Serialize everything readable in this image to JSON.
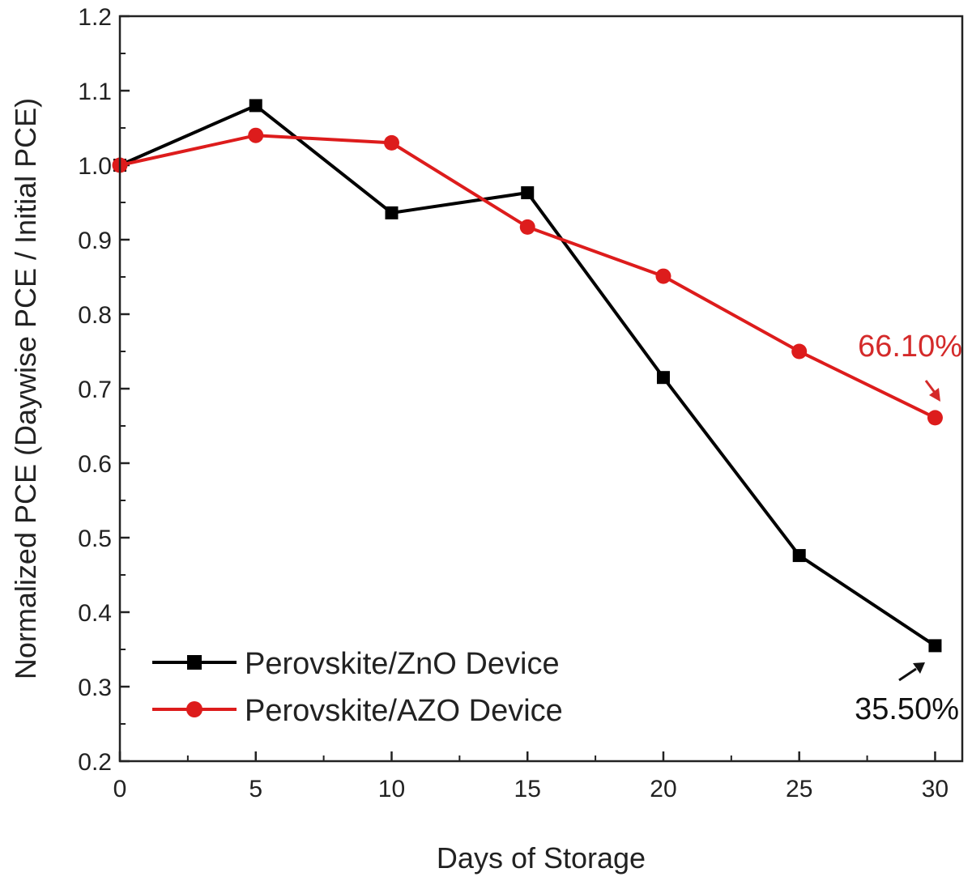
{
  "chart_data": {
    "type": "line",
    "title": "",
    "xlabel": "Days of Storage",
    "ylabel": "Normalized PCE (Daywise PCE / Initial PCE)",
    "x": [
      0,
      5,
      10,
      15,
      20,
      25,
      30
    ],
    "xlim": [
      0,
      31
    ],
    "ylim": [
      0.2,
      1.2
    ],
    "xticks": [
      "0",
      "5",
      "10",
      "15",
      "20",
      "25",
      "30"
    ],
    "yticks": [
      "0.2",
      "0.3",
      "0.4",
      "0.5",
      "0.6",
      "0.7",
      "0.8",
      "0.9",
      "1.0",
      "1.1",
      "1.2"
    ],
    "grid": false,
    "legend_position": "bottom-left",
    "series": [
      {
        "name": "Perovskite/ZnO Device",
        "color": "#000000",
        "marker": "square",
        "values": [
          1.0,
          1.08,
          0.936,
          0.963,
          0.715,
          0.476,
          0.355
        ]
      },
      {
        "name": "Perovskite/AZO Device",
        "color": "#dd1c1c",
        "marker": "circle",
        "values": [
          1.0,
          1.04,
          1.03,
          0.917,
          0.851,
          0.75,
          0.661
        ]
      }
    ],
    "annotations": [
      {
        "text": "66.10%",
        "series": 1,
        "x": 30,
        "color": "#d42a2a"
      },
      {
        "text": "35.50%",
        "series": 0,
        "x": 30,
        "color": "#111111"
      }
    ]
  }
}
